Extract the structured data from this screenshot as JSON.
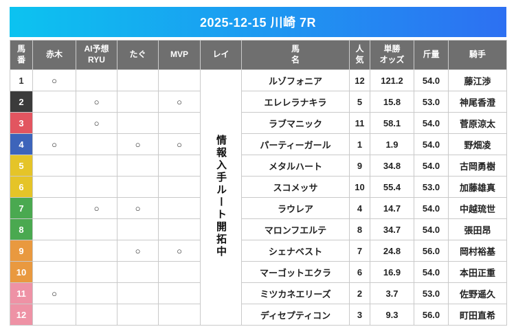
{
  "banner": {
    "title": "2025-12-15 川崎 7R"
  },
  "colors": {
    "banner_gradient_start": "#0cc3f0",
    "banner_gradient_end": "#2d70f2",
    "header_bg": "#6f6f6f",
    "rei_cell_bg": "#e0e0e0",
    "frame_white": "#ffffff",
    "frame_black": "#3b3b3b",
    "frame_red": "#e25560",
    "frame_blue": "#3d64ba",
    "frame_yellow": "#e5c428",
    "frame_green": "#4aa950",
    "frame_orange": "#e9993f",
    "frame_pink": "#ee92a5"
  },
  "table": {
    "columns": [
      {
        "id": "umaban",
        "lines": [
          "馬",
          "番"
        ]
      },
      {
        "id": "akagi",
        "lines": [
          "赤木"
        ]
      },
      {
        "id": "ai-ryu",
        "lines": [
          "AI予想",
          "RYU"
        ]
      },
      {
        "id": "tagu",
        "lines": [
          "たぐ"
        ]
      },
      {
        "id": "mvp",
        "lines": [
          "MVP"
        ]
      },
      {
        "id": "rei",
        "lines": [
          "レイ"
        ]
      },
      {
        "id": "umamei",
        "lines": [
          "馬",
          "名"
        ]
      },
      {
        "id": "ninki",
        "lines": [
          "人",
          "気"
        ]
      },
      {
        "id": "odds",
        "lines": [
          "単勝",
          "オッズ"
        ]
      },
      {
        "id": "kinryo",
        "lines": [
          "斤量"
        ]
      },
      {
        "id": "kishu",
        "lines": [
          "騎手"
        ]
      }
    ],
    "rei_status": "情報入手ルート開拓中",
    "mark_symbol": "○",
    "rows": [
      {
        "num": "1",
        "num_bg": "#ffffff",
        "num_color": "#333333",
        "akagi": "○",
        "ai_ryu": "",
        "tagu": "",
        "mvp": "",
        "name": "ルゾフォニア",
        "ninki": "12",
        "odds": "121.2",
        "kinryo": "54.0",
        "jockey": "藤江渉"
      },
      {
        "num": "2",
        "num_bg": "#3b3b3b",
        "num_color": "#ffffff",
        "akagi": "",
        "ai_ryu": "○",
        "tagu": "",
        "mvp": "○",
        "name": "エレレラナキラ",
        "ninki": "5",
        "odds": "15.8",
        "kinryo": "53.0",
        "jockey": "神尾香澄"
      },
      {
        "num": "3",
        "num_bg": "#e25560",
        "num_color": "#ffffff",
        "akagi": "",
        "ai_ryu": "○",
        "tagu": "",
        "mvp": "",
        "name": "ラブマニック",
        "ninki": "11",
        "odds": "58.1",
        "kinryo": "54.0",
        "jockey": "菅原涼太"
      },
      {
        "num": "4",
        "num_bg": "#3d64ba",
        "num_color": "#ffffff",
        "akagi": "○",
        "ai_ryu": "",
        "tagu": "○",
        "mvp": "○",
        "name": "パーティーガール",
        "ninki": "1",
        "odds": "1.9",
        "kinryo": "54.0",
        "jockey": "野畑凌"
      },
      {
        "num": "5",
        "num_bg": "#e5c428",
        "num_color": "#ffffff",
        "akagi": "",
        "ai_ryu": "",
        "tagu": "",
        "mvp": "",
        "name": "メタルハート",
        "ninki": "9",
        "odds": "34.8",
        "kinryo": "54.0",
        "jockey": "古岡勇樹"
      },
      {
        "num": "6",
        "num_bg": "#e5c428",
        "num_color": "#ffffff",
        "akagi": "",
        "ai_ryu": "",
        "tagu": "",
        "mvp": "",
        "name": "スコメッサ",
        "ninki": "10",
        "odds": "55.4",
        "kinryo": "53.0",
        "jockey": "加藤雄真"
      },
      {
        "num": "7",
        "num_bg": "#4aa950",
        "num_color": "#ffffff",
        "akagi": "",
        "ai_ryu": "○",
        "tagu": "○",
        "mvp": "",
        "name": "ラウレア",
        "ninki": "4",
        "odds": "14.7",
        "kinryo": "54.0",
        "jockey": "中越琉世"
      },
      {
        "num": "8",
        "num_bg": "#4aa950",
        "num_color": "#ffffff",
        "akagi": "",
        "ai_ryu": "",
        "tagu": "",
        "mvp": "",
        "name": "マロンフエルテ",
        "ninki": "8",
        "odds": "34.7",
        "kinryo": "54.0",
        "jockey": "張田昂"
      },
      {
        "num": "9",
        "num_bg": "#e9993f",
        "num_color": "#ffffff",
        "akagi": "",
        "ai_ryu": "",
        "tagu": "○",
        "mvp": "○",
        "name": "シェナベスト",
        "ninki": "7",
        "odds": "24.8",
        "kinryo": "56.0",
        "jockey": "岡村裕基"
      },
      {
        "num": "10",
        "num_bg": "#e9993f",
        "num_color": "#ffffff",
        "akagi": "",
        "ai_ryu": "",
        "tagu": "",
        "mvp": "",
        "name": "マーゴットエクラ",
        "ninki": "6",
        "odds": "16.9",
        "kinryo": "54.0",
        "jockey": "本田正重"
      },
      {
        "num": "11",
        "num_bg": "#ee92a5",
        "num_color": "#ffffff",
        "akagi": "○",
        "ai_ryu": "",
        "tagu": "",
        "mvp": "",
        "name": "ミツカネエリーズ",
        "ninki": "2",
        "odds": "3.7",
        "kinryo": "53.0",
        "jockey": "佐野遥久"
      },
      {
        "num": "12",
        "num_bg": "#ee92a5",
        "num_color": "#ffffff",
        "akagi": "",
        "ai_ryu": "",
        "tagu": "",
        "mvp": "",
        "name": "ディセプティコン",
        "ninki": "3",
        "odds": "9.3",
        "kinryo": "56.0",
        "jockey": "町田直希"
      }
    ]
  }
}
